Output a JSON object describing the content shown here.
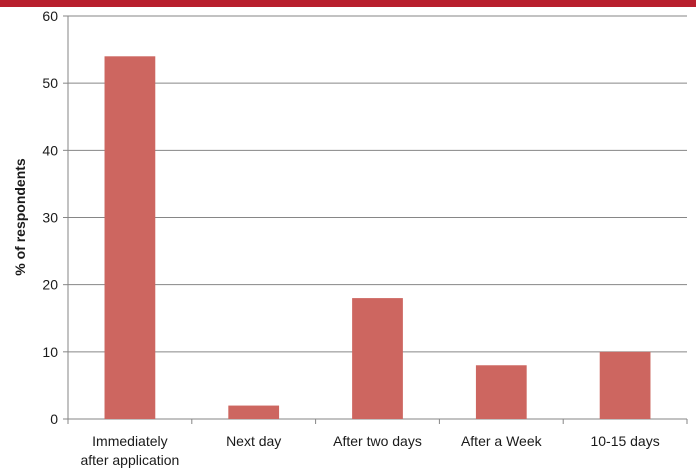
{
  "colors": {
    "accent_bar": "#b81f2d",
    "bar_fill": "#cd6660",
    "axis": "#868686",
    "gridline": "#868686",
    "text": "#1a1a1a"
  },
  "chart_data": {
    "type": "bar",
    "title": "",
    "xlabel": "",
    "ylabel": "% of respondents",
    "ylim": [
      0,
      60
    ],
    "yticks": [
      0,
      10,
      20,
      30,
      40,
      50,
      60
    ],
    "grid": true,
    "legend": "none",
    "categories": [
      [
        "Immediately",
        "after application"
      ],
      [
        "Next day"
      ],
      [
        "After two days"
      ],
      [
        "After a Week"
      ],
      [
        "10-15 days"
      ]
    ],
    "values": [
      54,
      2,
      18,
      8,
      10
    ]
  }
}
